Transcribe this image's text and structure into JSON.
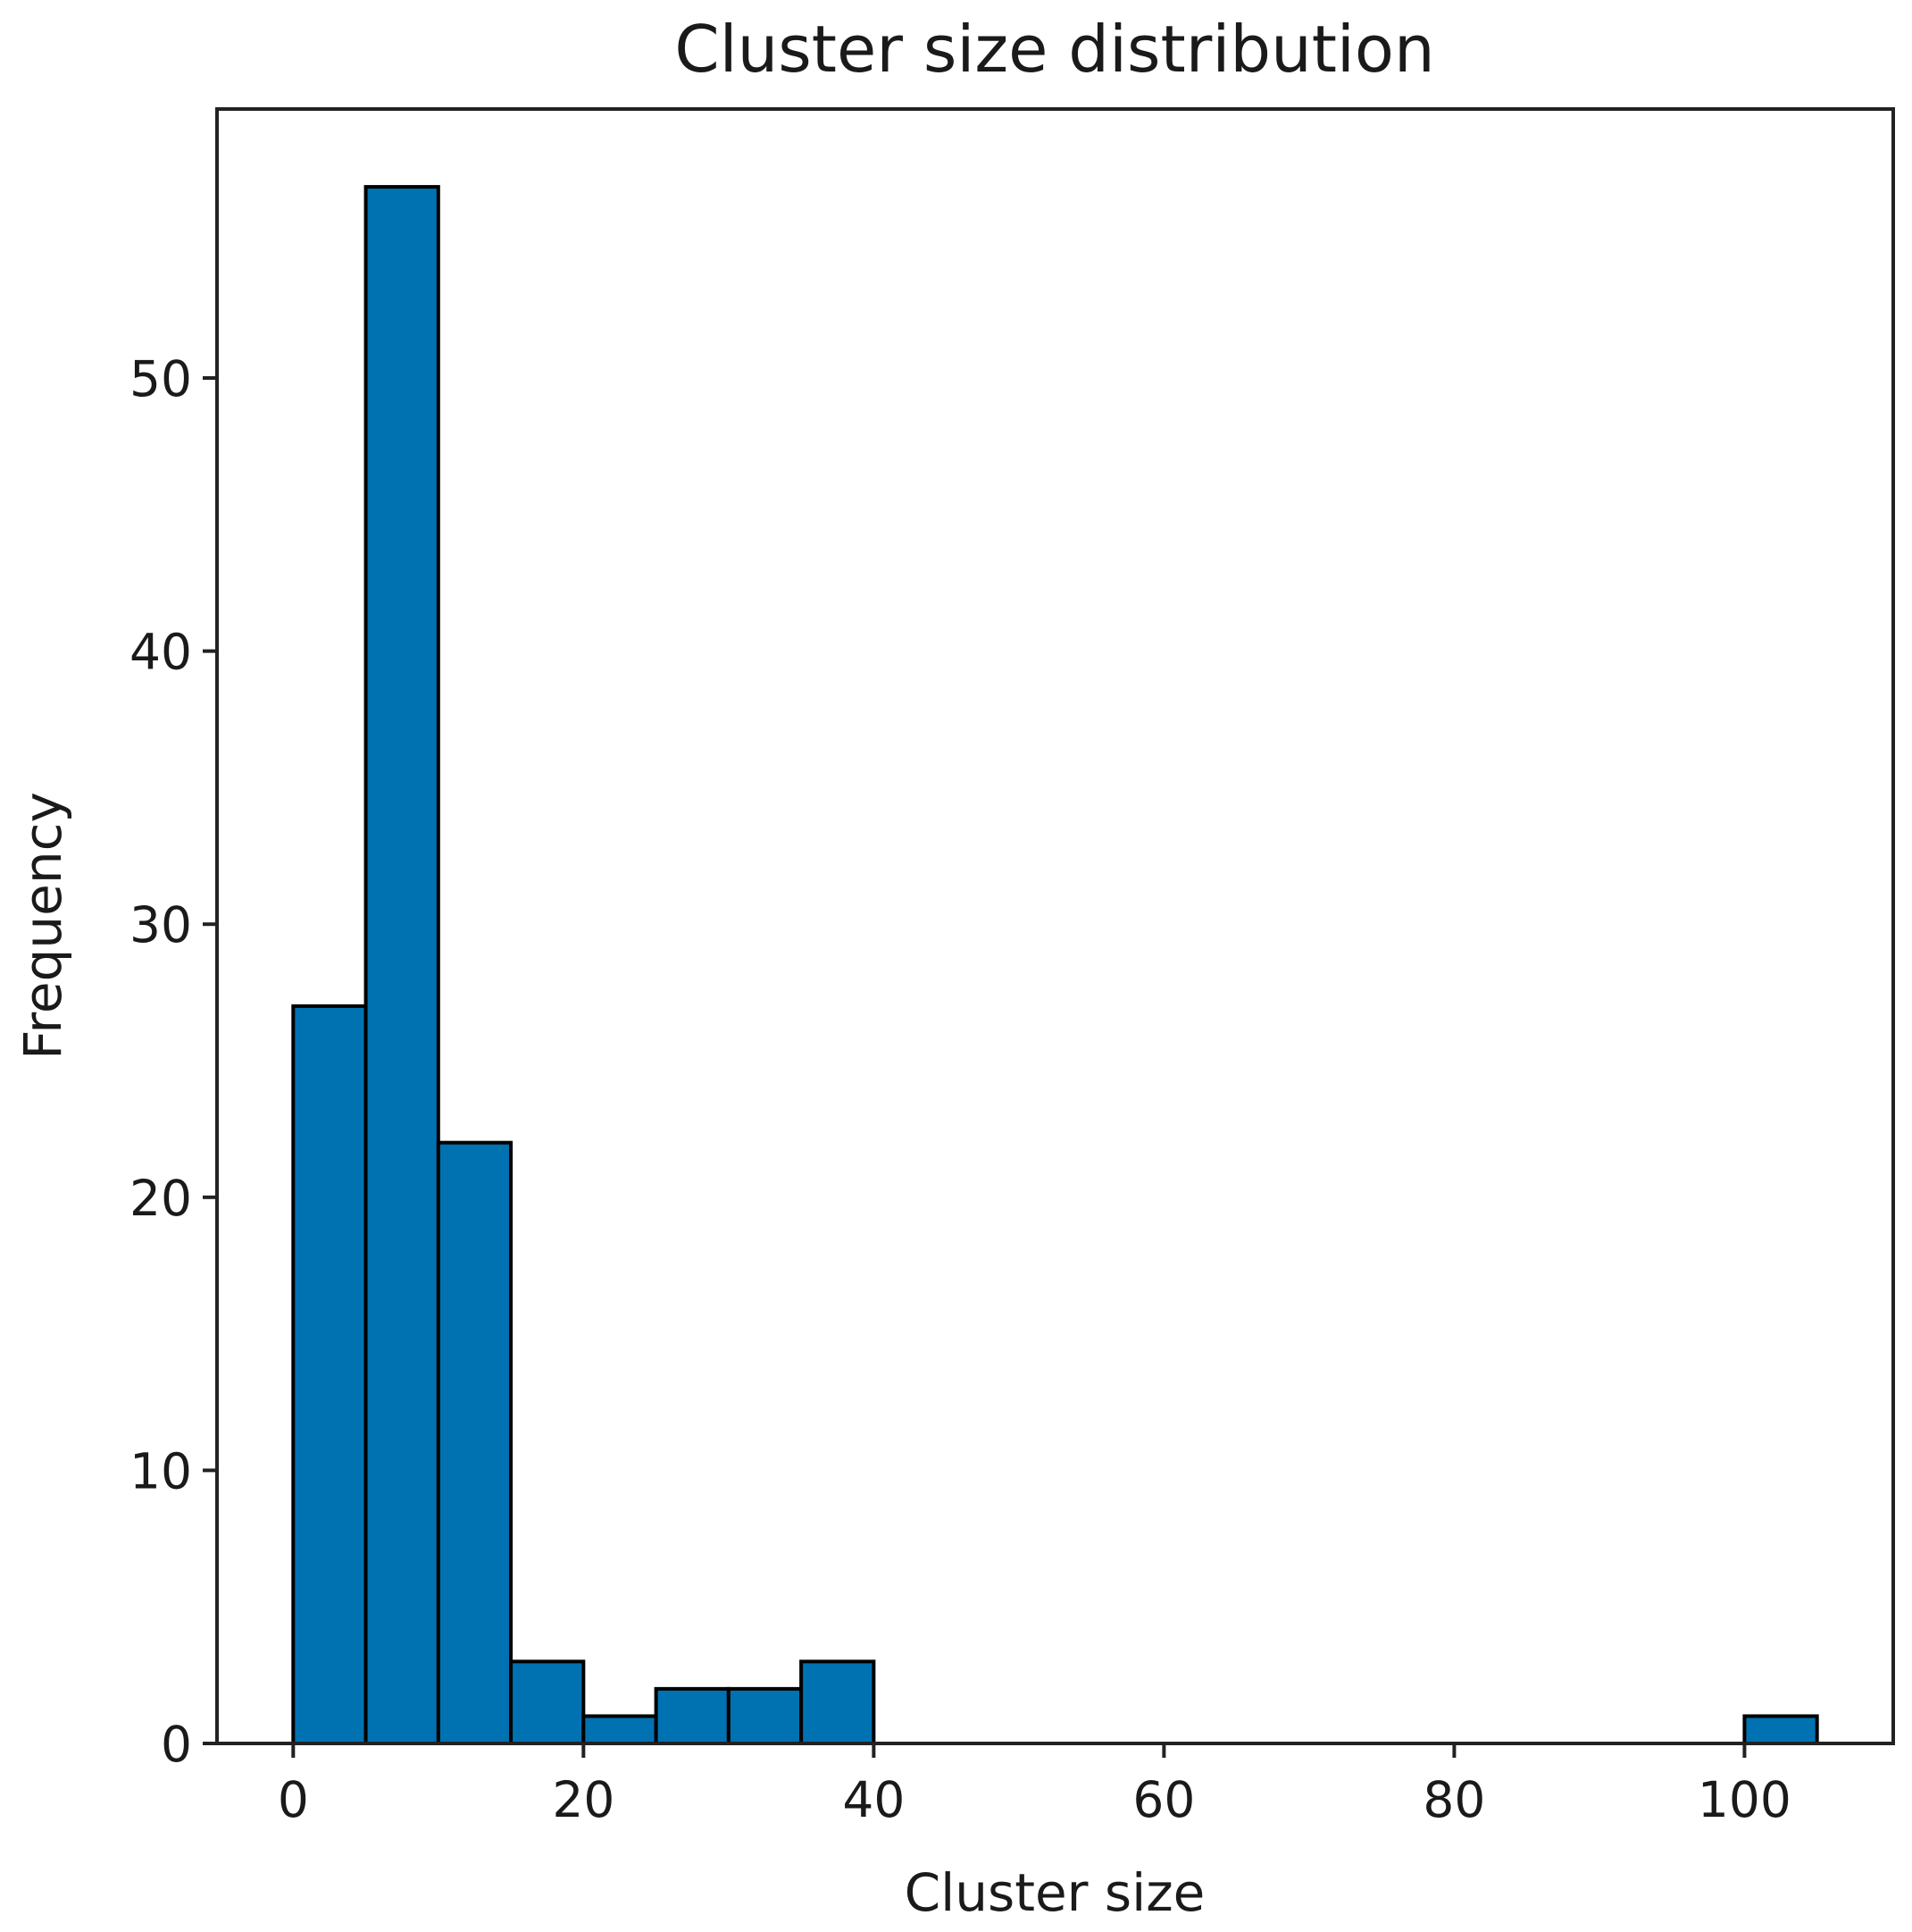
{
  "chart_data": {
    "type": "bar",
    "title": "Cluster size distribution",
    "xlabel": "Cluster size",
    "ylabel": "Frequency",
    "bin_edges": [
      0,
      5,
      10,
      15,
      20,
      25,
      30,
      35,
      40,
      45,
      50,
      55,
      60,
      65,
      70,
      75,
      80,
      85,
      90,
      95,
      100,
      105
    ],
    "counts": [
      27,
      57,
      22,
      3,
      1,
      2,
      2,
      3,
      0,
      0,
      0,
      0,
      0,
      0,
      0,
      0,
      0,
      0,
      0,
      0,
      1
    ],
    "xlim": [
      -5.25,
      110.25
    ],
    "ylim": [
      0,
      59.85
    ],
    "xticks": [
      0,
      20,
      40,
      60,
      80,
      100
    ],
    "yticks": [
      0,
      10,
      20,
      30,
      40,
      50
    ],
    "grid": false,
    "bar_color": "#0072b2",
    "edge_color": "#000000"
  }
}
